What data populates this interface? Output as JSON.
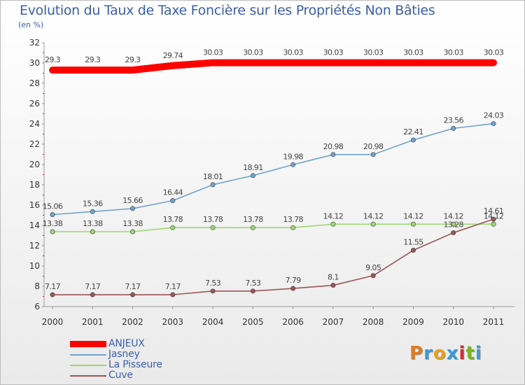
{
  "header": {
    "title": "Evolution du Taux de Taxe Foncière sur les Propriétés Non Bâties",
    "unit": "(en %)"
  },
  "brand": {
    "text": "Proxiti",
    "letter_colors": [
      "#e07b1f",
      "#3a9bd8",
      "#e6a020",
      "#3a9bd8",
      "#d9262b",
      "#7ab51d",
      "#3a9bd8"
    ]
  },
  "chart_data": {
    "type": "line",
    "title": "Evolution du Taux de Taxe Foncière sur les Propriétés Non Bâties",
    "ylabel": "(en %)",
    "xlabel": "",
    "x": [
      "2000",
      "2001",
      "2002",
      "2003",
      "2004",
      "2005",
      "2006",
      "2007",
      "2008",
      "2009",
      "2010",
      "2011"
    ],
    "ylim": [
      6,
      32
    ],
    "yticks": [
      "6",
      "8",
      "10",
      "12",
      "14",
      "16",
      "18",
      "20",
      "22",
      "24",
      "26",
      "28",
      "30",
      "32"
    ],
    "legend_position": "bottom-left",
    "grid": false,
    "series": [
      {
        "name": "ANJEUX",
        "color": "#ff0000",
        "values": [
          29.3,
          29.3,
          29.3,
          29.74,
          30.03,
          30.03,
          30.03,
          30.03,
          30.03,
          30.03,
          30.03,
          30.03
        ],
        "labels": [
          "29.3",
          "29.3",
          "29.3",
          "29.74",
          "30.03",
          "30.03",
          "30.03",
          "30.03",
          "30.03",
          "30.03",
          "30.03",
          "30.03"
        ]
      },
      {
        "name": "Jasney",
        "color": "#6fa3cf",
        "values": [
          15.06,
          15.36,
          15.66,
          16.44,
          18.01,
          18.91,
          19.98,
          20.98,
          20.98,
          22.41,
          23.56,
          24.03
        ],
        "labels": [
          "15.06",
          "15.36",
          "15.66",
          "16.44",
          "18.01",
          "18.91",
          "19.98",
          "20.98",
          "20.98",
          "22.41",
          "23.56",
          "24.03"
        ]
      },
      {
        "name": "La Pisseure",
        "color": "#99d86b",
        "values": [
          13.38,
          13.38,
          13.38,
          13.78,
          13.78,
          13.78,
          13.78,
          14.12,
          14.12,
          14.12,
          14.12,
          14.12
        ],
        "labels": [
          "13.38",
          "13.38",
          "13.38",
          "13.78",
          "13.78",
          "13.78",
          "13.78",
          "14.12",
          "14.12",
          "14.12",
          "14.12",
          "14.12"
        ]
      },
      {
        "name": "Cuve",
        "color": "#9b5555",
        "values": [
          7.17,
          7.17,
          7.17,
          7.17,
          7.53,
          7.53,
          7.79,
          8.1,
          9.05,
          11.55,
          13.28,
          14.61
        ],
        "labels": [
          "7.17",
          "7.17",
          "7.17",
          "7.17",
          "7.53",
          "7.53",
          "7.79",
          "8.1",
          "9.05",
          "11.55",
          "13.28",
          "14.61"
        ]
      }
    ]
  }
}
